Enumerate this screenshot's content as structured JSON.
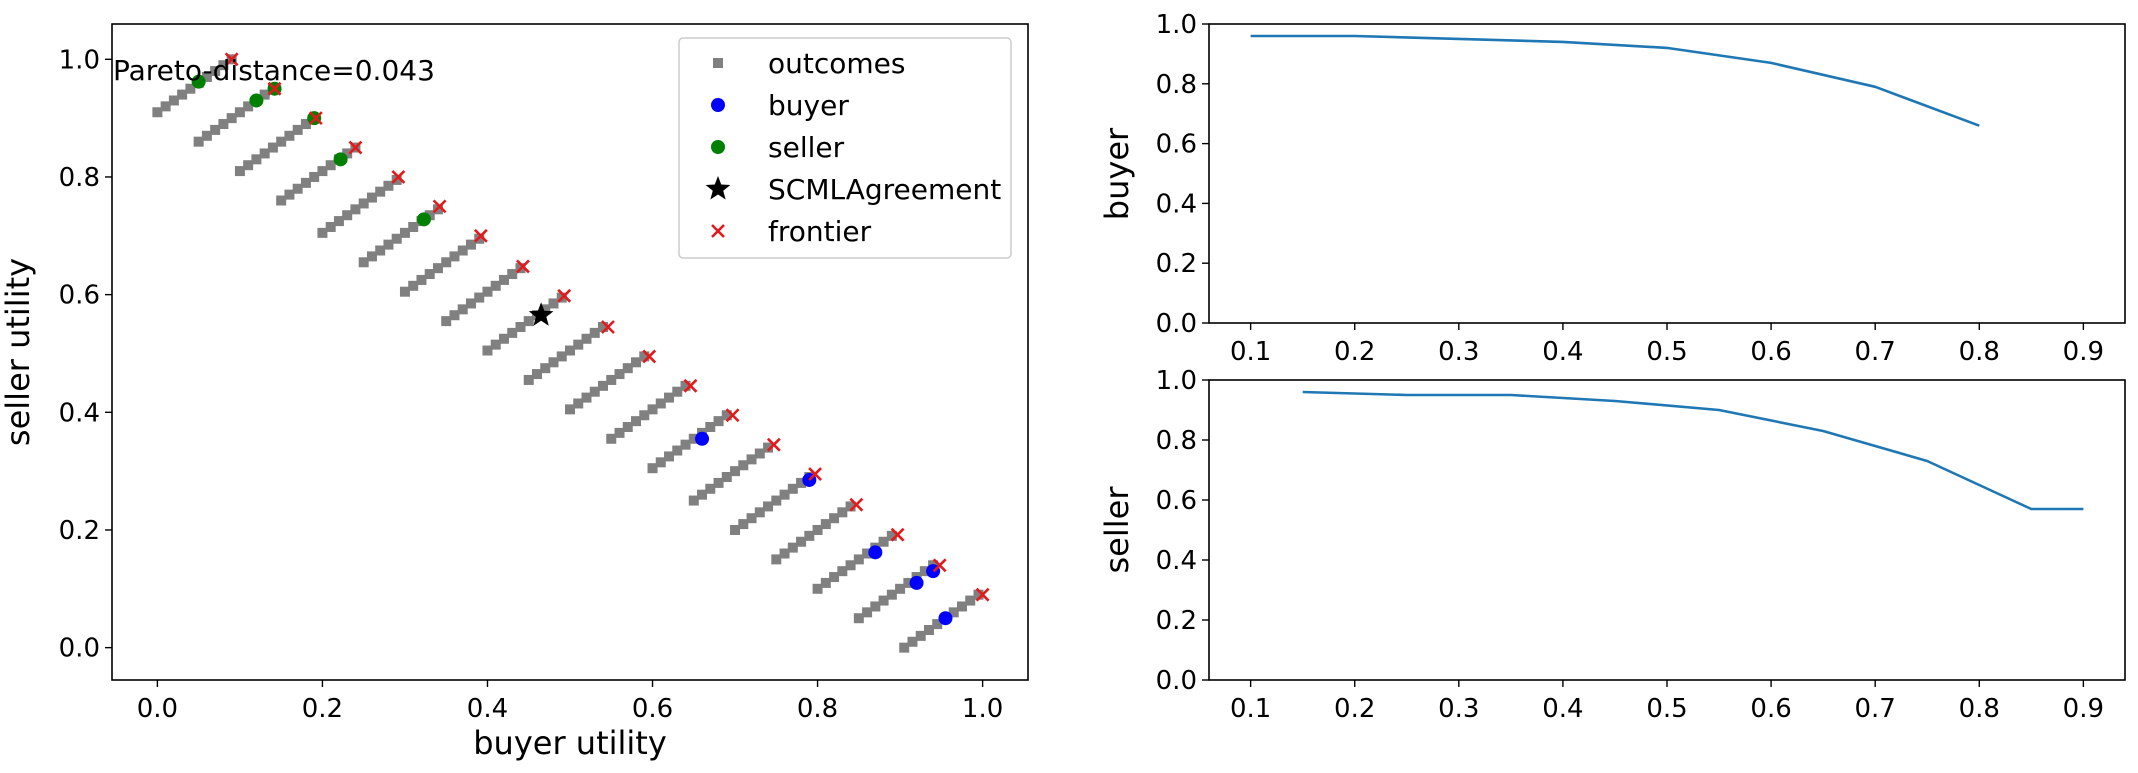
{
  "chart_data": [
    {
      "type": "scatter",
      "xlabel": "buyer utility",
      "ylabel": "seller utility",
      "xlim": [
        -0.055,
        1.055
      ],
      "ylim": [
        -0.055,
        1.06
      ],
      "xticks": [
        "0.0",
        "0.2",
        "0.4",
        "0.6",
        "0.8",
        "1.0"
      ],
      "yticks": [
        "0.0",
        "0.2",
        "0.4",
        "0.6",
        "0.8",
        "1.0"
      ],
      "annotation": "Pareto-distance=0.043",
      "legend_position": "top-right",
      "colors": {
        "outcomes": "#808080",
        "buyer": "#0000ff",
        "seller": "#008000",
        "agreement": "#000000",
        "frontier": "#e31a1c"
      },
      "outcome_rows": [
        {
          "x_start": 0.0,
          "y_start": 0.91
        },
        {
          "x_start": 0.05,
          "y_start": 0.86
        },
        {
          "x_start": 0.1,
          "y_start": 0.81
        },
        {
          "x_start": 0.15,
          "y_start": 0.76
        },
        {
          "x_start": 0.2,
          "y_start": 0.705
        },
        {
          "x_start": 0.25,
          "y_start": 0.655
        },
        {
          "x_start": 0.3,
          "y_start": 0.605
        },
        {
          "x_start": 0.35,
          "y_start": 0.555
        },
        {
          "x_start": 0.4,
          "y_start": 0.505
        },
        {
          "x_start": 0.45,
          "y_start": 0.455
        },
        {
          "x_start": 0.5,
          "y_start": 0.405
        },
        {
          "x_start": 0.55,
          "y_start": 0.355
        },
        {
          "x_start": 0.6,
          "y_start": 0.305
        },
        {
          "x_start": 0.65,
          "y_start": 0.25
        },
        {
          "x_start": 0.7,
          "y_start": 0.2
        },
        {
          "x_start": 0.75,
          "y_start": 0.15
        },
        {
          "x_start": 0.8,
          "y_start": 0.1
        },
        {
          "x_start": 0.85,
          "y_start": 0.05
        },
        {
          "x_start": 0.905,
          "y_start": 0.0
        }
      ],
      "outcome_step": {
        "dx": 0.01,
        "dy": 0.01,
        "count": 10
      },
      "series": [
        {
          "name": "outcomes",
          "marker": "square"
        },
        {
          "name": "buyer",
          "marker": "circle",
          "points": [
            [
              0.66,
              0.355
            ],
            [
              0.79,
              0.285
            ],
            [
              0.87,
              0.162
            ],
            [
              0.92,
              0.11
            ],
            [
              0.94,
              0.13
            ],
            [
              0.955,
              0.05
            ]
          ]
        },
        {
          "name": "seller",
          "marker": "circle",
          "points": [
            [
              0.05,
              0.962
            ],
            [
              0.12,
              0.93
            ],
            [
              0.142,
              0.95
            ],
            [
              0.19,
              0.9
            ],
            [
              0.222,
              0.83
            ],
            [
              0.323,
              0.728
            ]
          ]
        },
        {
          "name": "SCMLAgreement",
          "marker": "star",
          "points": [
            [
              0.465,
              0.565
            ]
          ]
        },
        {
          "name": "frontier",
          "marker": "x",
          "points": [
            [
              0.09,
              1.0
            ],
            [
              0.142,
              0.95
            ],
            [
              0.192,
              0.9
            ],
            [
              0.24,
              0.85
            ],
            [
              0.292,
              0.8
            ],
            [
              0.342,
              0.75
            ],
            [
              0.392,
              0.7
            ],
            [
              0.443,
              0.648
            ],
            [
              0.493,
              0.598
            ],
            [
              0.546,
              0.545
            ],
            [
              0.596,
              0.495
            ],
            [
              0.646,
              0.445
            ],
            [
              0.697,
              0.395
            ],
            [
              0.747,
              0.345
            ],
            [
              0.797,
              0.295
            ],
            [
              0.847,
              0.243
            ],
            [
              0.897,
              0.192
            ],
            [
              0.948,
              0.14
            ],
            [
              1.0,
              0.09
            ]
          ]
        }
      ]
    },
    {
      "type": "line",
      "xlabel": "",
      "ylabel": "buyer",
      "xlim": [
        0.06,
        0.94
      ],
      "ylim": [
        0.0,
        1.0
      ],
      "xticks": [
        "0.1",
        "0.2",
        "0.3",
        "0.4",
        "0.5",
        "0.6",
        "0.7",
        "0.8",
        "0.9"
      ],
      "yticks": [
        "0.0",
        "0.2",
        "0.4",
        "0.6",
        "0.8",
        "1.0"
      ],
      "color": "#1f77b4",
      "x": [
        0.1,
        0.2,
        0.3,
        0.4,
        0.5,
        0.6,
        0.7,
        0.8
      ],
      "y": [
        0.96,
        0.96,
        0.95,
        0.94,
        0.92,
        0.87,
        0.79,
        0.66
      ]
    },
    {
      "type": "line",
      "xlabel": "",
      "ylabel": "seller",
      "xlim": [
        0.06,
        0.94
      ],
      "ylim": [
        0.0,
        1.0
      ],
      "xticks": [
        "0.1",
        "0.2",
        "0.3",
        "0.4",
        "0.5",
        "0.6",
        "0.7",
        "0.8",
        "0.9"
      ],
      "yticks": [
        "0.0",
        "0.2",
        "0.4",
        "0.6",
        "0.8",
        "1.0"
      ],
      "color": "#1f77b4",
      "x": [
        0.15,
        0.25,
        0.35,
        0.45,
        0.55,
        0.65,
        0.75,
        0.85,
        0.9
      ],
      "y": [
        0.96,
        0.95,
        0.95,
        0.93,
        0.9,
        0.83,
        0.73,
        0.57,
        0.57
      ]
    }
  ]
}
